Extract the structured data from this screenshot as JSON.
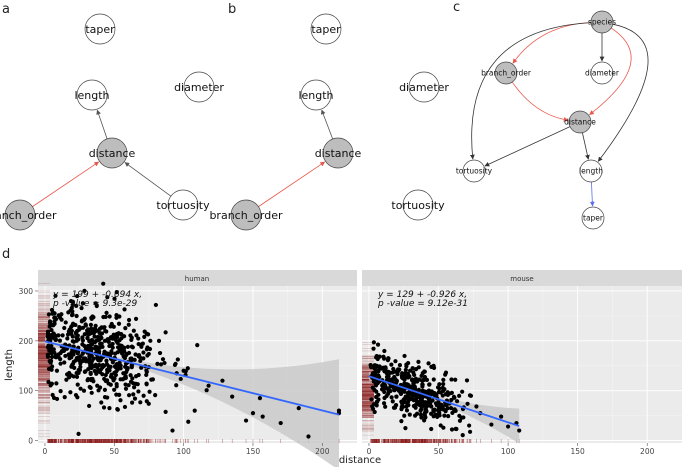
{
  "panel_labels": {
    "a": "a",
    "b": "b",
    "c": "c",
    "d": "d"
  },
  "graph_a": {
    "nodes": [
      {
        "id": "taper",
        "label": "taper",
        "highlight": false
      },
      {
        "id": "length",
        "label": "length",
        "highlight": false
      },
      {
        "id": "diameter",
        "label": "diameter",
        "highlight": false
      },
      {
        "id": "distance",
        "label": "distance",
        "highlight": true
      },
      {
        "id": "branch_order",
        "label": "branch_order",
        "highlight": true
      },
      {
        "id": "tortuosity",
        "label": "tortuosity",
        "highlight": false
      }
    ],
    "edges": [
      {
        "from": "branch_order",
        "to": "distance",
        "color": "#e8564b"
      },
      {
        "from": "tortuosity",
        "to": "distance",
        "color": "#555555"
      },
      {
        "from": "distance",
        "to": "length",
        "color": "#555555"
      }
    ]
  },
  "graph_b": {
    "nodes": [
      {
        "id": "taper",
        "label": "taper",
        "highlight": false
      },
      {
        "id": "length",
        "label": "length",
        "highlight": false
      },
      {
        "id": "diameter",
        "label": "diameter",
        "highlight": false
      },
      {
        "id": "distance",
        "label": "distance",
        "highlight": true
      },
      {
        "id": "branch_order",
        "label": "branch_order",
        "highlight": true
      },
      {
        "id": "tortuosity",
        "label": "tortuosity",
        "highlight": false
      }
    ],
    "edges": [
      {
        "from": "branch_order",
        "to": "distance",
        "color": "#e8564b"
      },
      {
        "from": "distance",
        "to": "length",
        "color": "#555555"
      }
    ]
  },
  "graph_c": {
    "nodes": [
      {
        "id": "species",
        "label": "species",
        "highlight": true
      },
      {
        "id": "branch_order",
        "label": "branch_order",
        "highlight": true
      },
      {
        "id": "diameter",
        "label": "diameter",
        "highlight": false
      },
      {
        "id": "distance",
        "label": "distance",
        "highlight": true
      },
      {
        "id": "tortuosity",
        "label": "tortuosity",
        "highlight": false
      },
      {
        "id": "length",
        "label": "length",
        "highlight": false
      },
      {
        "id": "taper",
        "label": "taper",
        "highlight": false
      }
    ],
    "edges": [
      {
        "from": "species",
        "to": "branch_order",
        "color": "#e8564b"
      },
      {
        "from": "species",
        "to": "diameter",
        "color": "#333333"
      },
      {
        "from": "species",
        "to": "distance",
        "color": "#e8564b"
      },
      {
        "from": "branch_order",
        "to": "distance",
        "color": "#e8564b"
      },
      {
        "from": "species",
        "to": "tortuosity",
        "color": "#333333"
      },
      {
        "from": "species",
        "to": "length",
        "color": "#333333"
      },
      {
        "from": "distance",
        "to": "tortuosity",
        "color": "#333333"
      },
      {
        "from": "distance",
        "to": "length",
        "color": "#333333"
      },
      {
        "from": "length",
        "to": "taper",
        "color": "#5b6cf0"
      }
    ]
  },
  "colors": {
    "node_highlight": "#bdbdbd",
    "node_plain": "#ffffff",
    "panel_bg": "#ebebeb",
    "strip_bg": "#d9d9d9",
    "fit_line": "#3366ff",
    "rug": "#8b1a1a",
    "ci_band": "#c8c8c8"
  },
  "chart_data": {
    "type": "scatter",
    "xlabel": "distance",
    "ylabel": "length",
    "xlim": [
      -5,
      225
    ],
    "ylim": [
      -5,
      310
    ],
    "xticks": [
      0,
      50,
      100,
      150,
      200
    ],
    "yticks": [
      0,
      100,
      200,
      300
    ],
    "facets": [
      {
        "name": "human",
        "annotation_line1": "y = 199 + -0.694 x,",
        "annotation_line2": "p -value = 9.3e-29",
        "fit": {
          "intercept": 199,
          "slope": -0.694,
          "x_start": 0,
          "x_end": 212
        },
        "point_cloud": {
          "x_mean": 38,
          "x_sd": 24,
          "x_min": 2,
          "x_max": 212,
          "y_sd": 45,
          "count": 560
        },
        "outliers": [
          [
            212,
            60
          ],
          [
            212,
            55
          ],
          [
            190,
            8
          ],
          [
            183,
            65
          ],
          [
            170,
            35
          ],
          [
            157,
            48
          ],
          [
            155,
            85
          ],
          [
            150,
            55
          ],
          [
            145,
            40
          ],
          [
            135,
            88
          ],
          [
            128,
            120
          ],
          [
            100,
            140
          ],
          [
            103,
            145
          ],
          [
            95,
            135
          ],
          [
            80,
            272
          ],
          [
            76,
            200
          ],
          [
            108,
            60
          ],
          [
            118,
            110
          ]
        ]
      },
      {
        "name": "mouse",
        "annotation_line1": "y = 129 + -0.926 x,",
        "annotation_line2": "p -value = 9.12e-31",
        "fit": {
          "intercept": 129,
          "slope": -0.926,
          "x_start": 0,
          "x_end": 108
        },
        "point_cloud": {
          "x_mean": 30,
          "x_sd": 20,
          "x_min": 1,
          "x_max": 108,
          "y_sd": 28,
          "count": 420
        },
        "outliers": [
          [
            108,
            20
          ],
          [
            106,
            35
          ],
          [
            100,
            28
          ],
          [
            95,
            48
          ],
          [
            88,
            32
          ],
          [
            80,
            55
          ],
          [
            72,
            30
          ]
        ]
      }
    ]
  }
}
